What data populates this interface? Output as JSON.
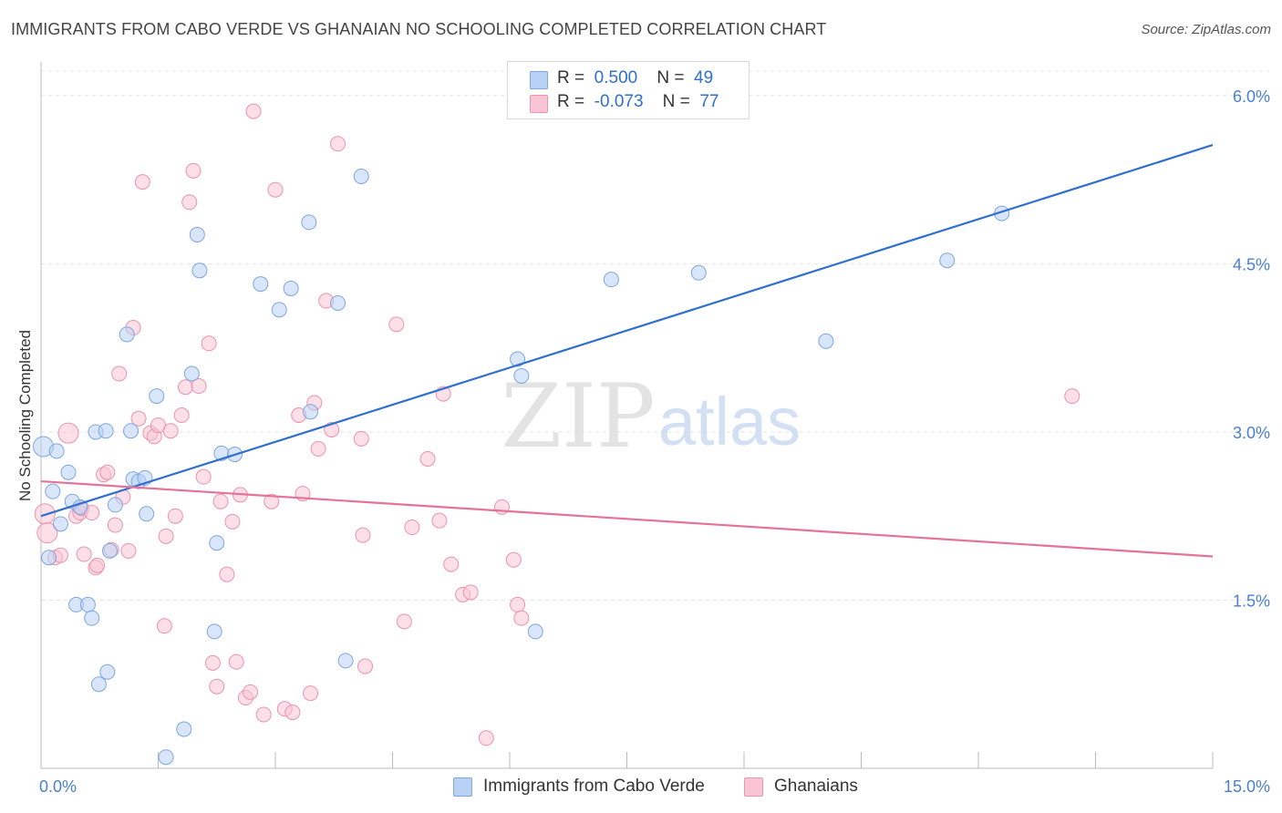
{
  "title": "IMMIGRANTS FROM CABO VERDE VS GHANAIAN NO SCHOOLING COMPLETED CORRELATION CHART",
  "source": "Source: ZipAtlas.com",
  "watermark": {
    "zip": "ZIP",
    "atlas": "atlas"
  },
  "legend": [
    {
      "r_label": "R =",
      "r_value": "0.500",
      "n_label": "N =",
      "n_value": "49"
    },
    {
      "r_label": "R =",
      "r_value": "-0.073",
      "n_label": "N =",
      "n_value": "77"
    }
  ],
  "bottom_legend": [
    "Immigrants from Cabo Verde",
    "Ghanaians"
  ],
  "colors": {
    "blue_fill": "#b9d1f4",
    "blue_stroke": "#7ea6e0",
    "blue_line": "#2f6fd0",
    "pink_fill": "#f9c5d4",
    "pink_stroke": "#ec93ad",
    "pink_line": "#e5729a",
    "axis_text": "#4a7fd0",
    "grid": "#e3e3e3"
  },
  "chart_data": {
    "type": "scatter",
    "title": "IMMIGRANTS FROM CABO VERDE VS GHANAIAN NO SCHOOLING COMPLETED CORRELATION CHART",
    "xlabel": "",
    "ylabel": "No Schooling Completed",
    "xlim": [
      0,
      15
    ],
    "ylim": [
      0,
      6.3
    ],
    "x_tick_labels": [
      "0.0%",
      "15.0%"
    ],
    "y_ticks": [
      1.5,
      3.0,
      4.5,
      6.0
    ],
    "y_tick_labels": [
      "1.5%",
      "3.0%",
      "4.5%",
      "6.0%"
    ],
    "grid": true,
    "series": [
      {
        "name": "Immigrants from Cabo Verde",
        "r": 0.5,
        "n": 49,
        "trend": {
          "x": [
            0,
            15
          ],
          "y": [
            2.25,
            5.56
          ]
        },
        "points": [
          {
            "x": 0.03,
            "y": 2.87,
            "big": true
          },
          {
            "x": 0.2,
            "y": 2.83
          },
          {
            "x": 0.15,
            "y": 2.47
          },
          {
            "x": 0.35,
            "y": 2.64
          },
          {
            "x": 0.4,
            "y": 2.38
          },
          {
            "x": 0.25,
            "y": 2.18
          },
          {
            "x": 0.1,
            "y": 1.88
          },
          {
            "x": 0.5,
            "y": 2.33
          },
          {
            "x": 0.45,
            "y": 1.46
          },
          {
            "x": 0.6,
            "y": 1.46
          },
          {
            "x": 0.65,
            "y": 1.34
          },
          {
            "x": 0.7,
            "y": 3.0
          },
          {
            "x": 0.83,
            "y": 3.01
          },
          {
            "x": 0.95,
            "y": 2.35
          },
          {
            "x": 1.1,
            "y": 3.87
          },
          {
            "x": 1.15,
            "y": 3.01
          },
          {
            "x": 1.18,
            "y": 2.58
          },
          {
            "x": 1.25,
            "y": 2.56
          },
          {
            "x": 1.33,
            "y": 2.59
          },
          {
            "x": 1.35,
            "y": 2.27
          },
          {
            "x": 1.48,
            "y": 3.32
          },
          {
            "x": 0.88,
            "y": 1.94
          },
          {
            "x": 0.85,
            "y": 0.86
          },
          {
            "x": 0.74,
            "y": 0.75
          },
          {
            "x": 1.93,
            "y": 3.52
          },
          {
            "x": 2.0,
            "y": 4.76
          },
          {
            "x": 2.03,
            "y": 4.44
          },
          {
            "x": 2.22,
            "y": 1.22
          },
          {
            "x": 2.25,
            "y": 2.01
          },
          {
            "x": 2.31,
            "y": 2.81
          },
          {
            "x": 2.48,
            "y": 2.8
          },
          {
            "x": 1.83,
            "y": 0.35
          },
          {
            "x": 1.6,
            "y": 0.1
          },
          {
            "x": 2.81,
            "y": 4.32
          },
          {
            "x": 3.05,
            "y": 4.09
          },
          {
            "x": 3.2,
            "y": 4.28
          },
          {
            "x": 3.43,
            "y": 4.87
          },
          {
            "x": 3.45,
            "y": 3.18
          },
          {
            "x": 3.8,
            "y": 4.15
          },
          {
            "x": 4.1,
            "y": 5.28
          },
          {
            "x": 3.9,
            "y": 0.96
          },
          {
            "x": 6.1,
            "y": 3.65
          },
          {
            "x": 6.15,
            "y": 3.5
          },
          {
            "x": 6.33,
            "y": 1.22
          },
          {
            "x": 7.3,
            "y": 4.36
          },
          {
            "x": 8.42,
            "y": 4.42
          },
          {
            "x": 10.05,
            "y": 3.81
          },
          {
            "x": 11.6,
            "y": 4.53
          },
          {
            "x": 12.3,
            "y": 4.95
          }
        ]
      },
      {
        "name": "Ghanaians",
        "r": -0.073,
        "n": 77,
        "trend": {
          "x": [
            0,
            15
          ],
          "y": [
            2.56,
            1.89
          ]
        },
        "points": [
          {
            "x": 0.05,
            "y": 2.27,
            "big": true
          },
          {
            "x": 0.08,
            "y": 2.1,
            "big": true
          },
          {
            "x": 0.18,
            "y": 1.88
          },
          {
            "x": 0.25,
            "y": 1.9
          },
          {
            "x": 0.35,
            "y": 2.99,
            "big": true
          },
          {
            "x": 0.45,
            "y": 2.25
          },
          {
            "x": 0.5,
            "y": 2.28
          },
          {
            "x": 0.52,
            "y": 2.32
          },
          {
            "x": 0.55,
            "y": 1.91
          },
          {
            "x": 0.65,
            "y": 2.28
          },
          {
            "x": 0.7,
            "y": 1.79
          },
          {
            "x": 0.72,
            "y": 1.81
          },
          {
            "x": 0.8,
            "y": 2.62
          },
          {
            "x": 0.85,
            "y": 2.64
          },
          {
            "x": 0.9,
            "y": 1.95
          },
          {
            "x": 0.95,
            "y": 2.17
          },
          {
            "x": 1.0,
            "y": 3.52
          },
          {
            "x": 1.05,
            "y": 2.42
          },
          {
            "x": 1.12,
            "y": 1.94
          },
          {
            "x": 1.18,
            "y": 3.93
          },
          {
            "x": 1.25,
            "y": 3.12
          },
          {
            "x": 1.3,
            "y": 5.23
          },
          {
            "x": 1.4,
            "y": 2.99
          },
          {
            "x": 1.45,
            "y": 2.96
          },
          {
            "x": 1.5,
            "y": 3.06
          },
          {
            "x": 1.58,
            "y": 1.27
          },
          {
            "x": 1.6,
            "y": 2.07
          },
          {
            "x": 1.66,
            "y": 3.01
          },
          {
            "x": 1.72,
            "y": 2.25
          },
          {
            "x": 1.8,
            "y": 3.15
          },
          {
            "x": 1.85,
            "y": 3.4
          },
          {
            "x": 1.9,
            "y": 5.05
          },
          {
            "x": 1.95,
            "y": 5.33
          },
          {
            "x": 2.02,
            "y": 3.41
          },
          {
            "x": 2.08,
            "y": 2.6
          },
          {
            "x": 2.15,
            "y": 3.79
          },
          {
            "x": 2.2,
            "y": 0.94
          },
          {
            "x": 2.25,
            "y": 0.73
          },
          {
            "x": 2.3,
            "y": 2.38
          },
          {
            "x": 2.38,
            "y": 1.73
          },
          {
            "x": 2.45,
            "y": 2.2
          },
          {
            "x": 2.5,
            "y": 0.95
          },
          {
            "x": 2.55,
            "y": 2.44
          },
          {
            "x": 2.62,
            "y": 0.63
          },
          {
            "x": 2.68,
            "y": 0.68
          },
          {
            "x": 2.72,
            "y": 5.86
          },
          {
            "x": 2.85,
            "y": 0.48
          },
          {
            "x": 2.95,
            "y": 2.38
          },
          {
            "x": 3.0,
            "y": 5.16
          },
          {
            "x": 3.12,
            "y": 0.53
          },
          {
            "x": 3.22,
            "y": 0.5
          },
          {
            "x": 3.3,
            "y": 3.15
          },
          {
            "x": 3.35,
            "y": 2.45
          },
          {
            "x": 3.45,
            "y": 0.67
          },
          {
            "x": 3.5,
            "y": 3.26
          },
          {
            "x": 3.55,
            "y": 2.85
          },
          {
            "x": 3.65,
            "y": 4.17
          },
          {
            "x": 3.72,
            "y": 3.02
          },
          {
            "x": 3.8,
            "y": 5.57
          },
          {
            "x": 4.1,
            "y": 2.94
          },
          {
            "x": 4.12,
            "y": 2.08
          },
          {
            "x": 4.15,
            "y": 0.91
          },
          {
            "x": 4.55,
            "y": 3.96
          },
          {
            "x": 4.65,
            "y": 1.31
          },
          {
            "x": 4.75,
            "y": 2.15
          },
          {
            "x": 4.95,
            "y": 2.76
          },
          {
            "x": 5.1,
            "y": 2.21
          },
          {
            "x": 5.15,
            "y": 3.34
          },
          {
            "x": 5.25,
            "y": 1.82
          },
          {
            "x": 5.4,
            "y": 1.55
          },
          {
            "x": 5.5,
            "y": 1.57
          },
          {
            "x": 5.7,
            "y": 0.27
          },
          {
            "x": 5.9,
            "y": 2.33
          },
          {
            "x": 6.05,
            "y": 1.86
          },
          {
            "x": 6.1,
            "y": 1.46
          },
          {
            "x": 6.15,
            "y": 1.34
          },
          {
            "x": 13.2,
            "y": 3.32
          }
        ]
      }
    ]
  }
}
